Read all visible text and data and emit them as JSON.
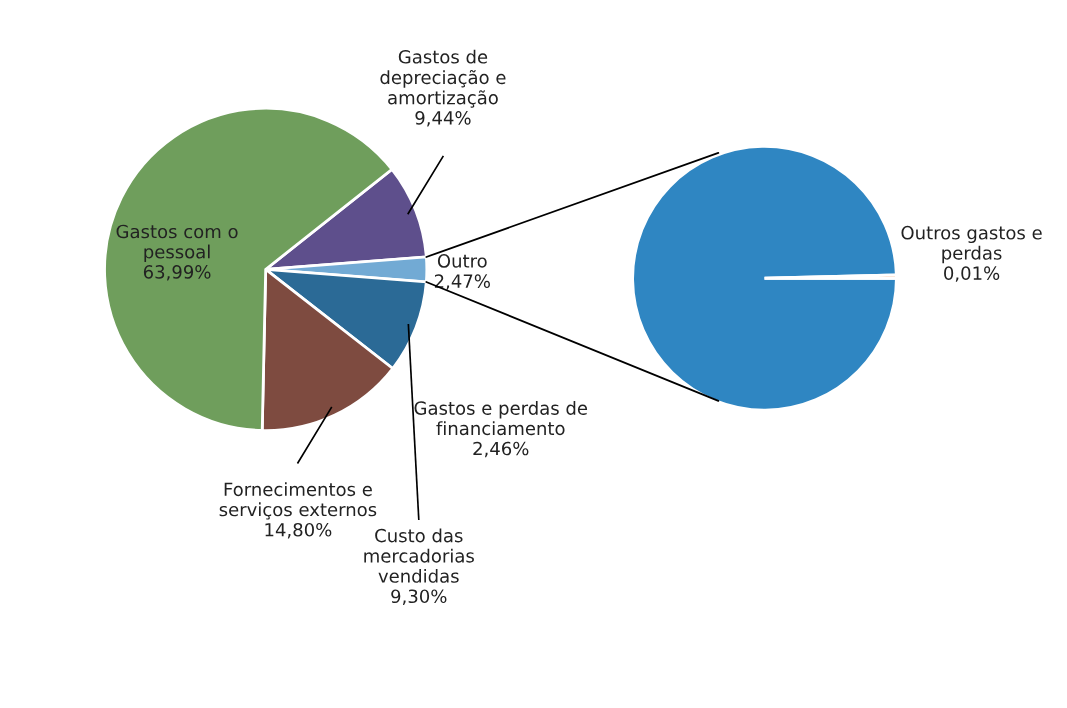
{
  "chart_data": [
    {
      "type": "pie",
      "categories": [
        "Gastos de depreciação e amortização",
        "Outro",
        "Custo das mercadorias vendidas",
        "Fornecimentos e serviços externos",
        "Gastos com o pessoal"
      ],
      "values": [
        9.44,
        2.47,
        9.3,
        14.8,
        63.99
      ],
      "value_labels": [
        "9,44%",
        "2,47%",
        "9,30%",
        "14,80%",
        "63,99%"
      ],
      "colors": [
        "#5e4f8c",
        "#72aad4",
        "#2b6a96",
        "#7e4b40",
        "#6f9e5c"
      ],
      "legend": false
    },
    {
      "type": "pie",
      "categories": [
        "Gastos e perdas de financiamento",
        "Outros gastos e perdas"
      ],
      "values": [
        2.46,
        0.01
      ],
      "value_labels": [
        "2,46%",
        "0,01%"
      ],
      "colors": [
        "#2f86c2",
        "#eda36f"
      ],
      "legend": false
    }
  ]
}
